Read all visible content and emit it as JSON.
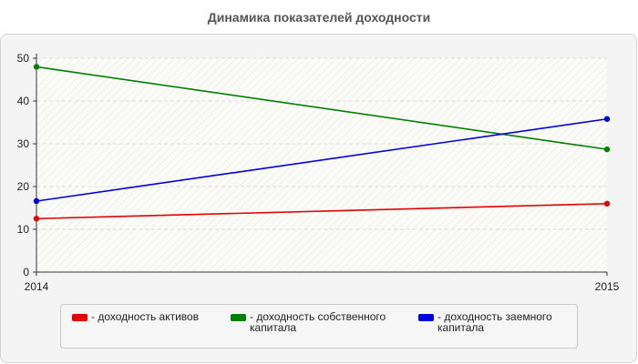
{
  "title": "Динамика показателей доходности",
  "chart_data": {
    "type": "line",
    "title": "Динамика показателей доходности",
    "x": [
      "2014",
      "2015"
    ],
    "ylim": [
      0,
      50
    ],
    "yticks": [
      0,
      10,
      20,
      30,
      40,
      50
    ],
    "grid": true,
    "legend_position": "bottom",
    "series": [
      {
        "name": "- доходность активов",
        "color": "#e60000",
        "values": [
          12.5,
          16.0
        ]
      },
      {
        "name": "- доходность собственного капитала",
        "color": "#008000",
        "values": [
          48.0,
          28.7
        ]
      },
      {
        "name": "- доходность заемного капитала",
        "color": "#0000e0",
        "values": [
          16.6,
          35.8
        ]
      }
    ]
  }
}
